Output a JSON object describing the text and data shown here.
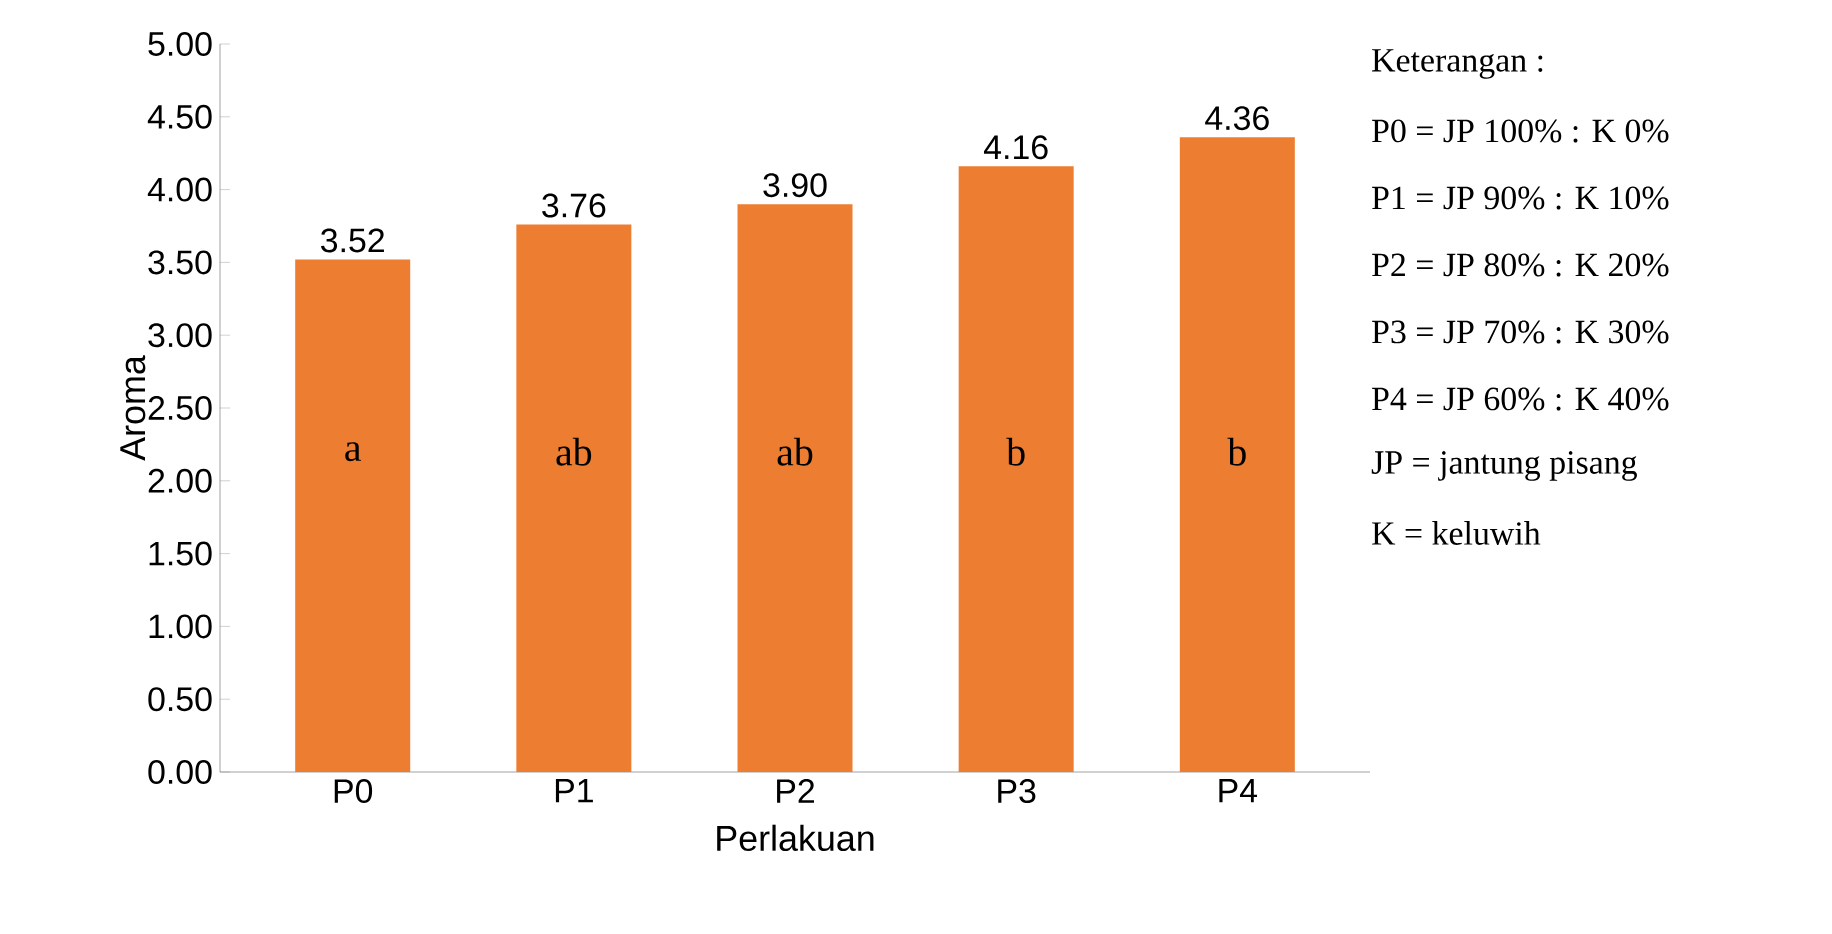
{
  "chart_data": {
    "type": "bar",
    "xlabel": "Perlakuan",
    "ylabel": "Aroma",
    "categories": [
      "P0",
      "P1",
      "P2",
      "P3",
      "P4"
    ],
    "values": [
      3.52,
      3.76,
      3.9,
      4.16,
      4.36
    ],
    "value_labels": [
      "3.52",
      "3.76",
      "3.90",
      "4.16",
      "4.36"
    ],
    "color": "#ed7d31",
    "ylim": [
      0,
      5
    ],
    "yticks": [
      {
        "value": 0,
        "label": "0.00"
      },
      {
        "value": 0.5,
        "label": "0.50"
      },
      {
        "value": 1,
        "label": "1.00"
      },
      {
        "value": 1.5,
        "label": "1.50"
      },
      {
        "value": 2,
        "label": "2.00"
      },
      {
        "value": 2.5,
        "label": "2.50"
      },
      {
        "value": 3,
        "label": "3.00"
      },
      {
        "value": 3.5,
        "label": "3.50"
      },
      {
        "value": 4,
        "label": "4.00"
      },
      {
        "value": 4.5,
        "label": "4.50"
      },
      {
        "value": 5,
        "label": "5.00"
      }
    ],
    "grid": false,
    "annotations": [
      "a",
      "ab",
      "ab",
      "b",
      "b",
      "Keterangan :",
      "P0 = JP 100%  : K 0%",
      "P1 = JP 90%    : K 10%",
      "P2 = JP 80%    : K 20%",
      "P3 = JP 70%    : K 30%",
      "P4 = JP 60%    : K 40%",
      "JP = jantung pisang",
      "K = keluwih"
    ]
  }
}
